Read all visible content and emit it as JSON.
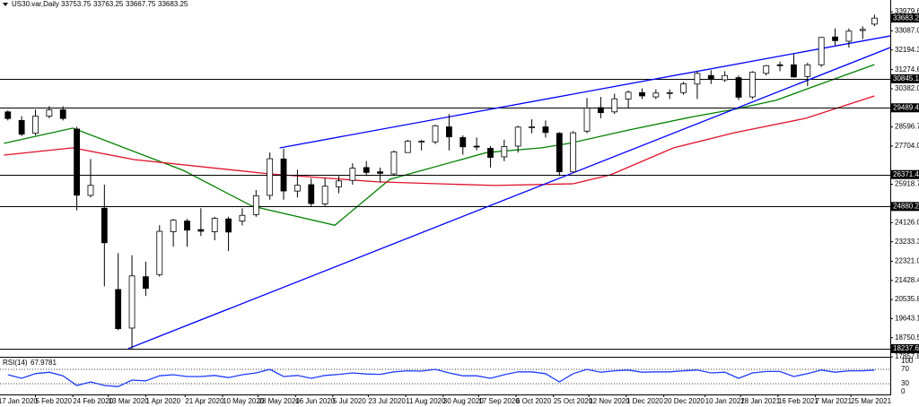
{
  "chart_data": {
    "type": "candlestick",
    "header": {
      "symbol": "US30.var,Daily",
      "ohlc": [
        33753.75,
        33763.25,
        33667.75,
        33683.25
      ]
    },
    "x": [
      "2020-01-22",
      "2020-01-29",
      "2020-02-05",
      "2020-02-12",
      "2020-02-19",
      "2020-02-26",
      "2020-03-04",
      "2020-03-11",
      "2020-03-18",
      "2020-03-25",
      "2020-04-01",
      "2020-04-08",
      "2020-04-15",
      "2020-04-22",
      "2020-04-29",
      "2020-05-06",
      "2020-05-13",
      "2020-05-20",
      "2020-05-27",
      "2020-06-03",
      "2020-06-10",
      "2020-06-17",
      "2020-06-24",
      "2020-07-01",
      "2020-07-08",
      "2020-07-15",
      "2020-07-22",
      "2020-07-29",
      "2020-08-05",
      "2020-08-12",
      "2020-08-19",
      "2020-08-26",
      "2020-09-02",
      "2020-09-09",
      "2020-09-16",
      "2020-09-23",
      "2020-09-30",
      "2020-10-07",
      "2020-10-14",
      "2020-10-21",
      "2020-10-28",
      "2020-11-04",
      "2020-11-11",
      "2020-11-18",
      "2020-11-25",
      "2020-12-02",
      "2020-12-09",
      "2020-12-16",
      "2020-12-23",
      "2020-12-30",
      "2021-01-06",
      "2021-01-13",
      "2021-01-20",
      "2021-01-27",
      "2021-02-03",
      "2021-02-10",
      "2021-02-17",
      "2021-02-24",
      "2021-03-03",
      "2021-03-10",
      "2021-03-17",
      "2021-03-24",
      "2021-03-31",
      "2021-04-06"
    ],
    "open": [
      29300,
      28900,
      28300,
      29100,
      29400,
      28500,
      25400,
      24800,
      21000,
      19200,
      21600,
      21700,
      23700,
      24200,
      23800,
      23700,
      24300,
      24200,
      24500,
      25400,
      27100,
      25600,
      25900,
      25000,
      25800,
      26100,
      26700,
      26500,
      26400,
      27400,
      27900,
      27900,
      28600,
      28100,
      27700,
      27600,
      27200,
      27700,
      28600,
      28600,
      28300,
      26500,
      28400,
      29500,
      29300,
      29900,
      30200,
      30000,
      30200,
      30200,
      30600,
      31000,
      30800,
      30900,
      30000,
      31100,
      31500,
      31500,
      30950,
      31500,
      32800,
      32600,
      33100,
      33400
    ],
    "high": [
      29370,
      29100,
      29410,
      29568,
      29560,
      28600,
      27100,
      25900,
      22700,
      22600,
      22300,
      24000,
      24300,
      24300,
      24800,
      24400,
      24400,
      24800,
      25650,
      27400,
      27580,
      26600,
      26200,
      26200,
      26300,
      26900,
      27000,
      26700,
      27500,
      28000,
      28000,
      28700,
      29200,
      28200,
      28100,
      27700,
      28000,
      28650,
      28950,
      28900,
      28350,
      28400,
      29950,
      30000,
      30150,
      30300,
      30400,
      30350,
      30350,
      30700,
      31200,
      31250,
      31200,
      31000,
      31200,
      31500,
      31650,
      32000,
      31600,
      32800,
      33200,
      33200,
      33300,
      33840
    ],
    "low": [
      28900,
      28170,
      28200,
      29000,
      28900,
      24700,
      25300,
      21150,
      19100,
      18237.62,
      20700,
      21600,
      23000,
      23000,
      23500,
      23300,
      22800,
      24000,
      24400,
      25200,
      25200,
      25300,
      24850,
      24900,
      25500,
      25900,
      26300,
      26000,
      26300,
      27400,
      27500,
      27800,
      27500,
      27300,
      27500,
      26700,
      27000,
      27400,
      28300,
      28100,
      26300,
      26500,
      28300,
      29000,
      29200,
      29500,
      29900,
      29900,
      29900,
      30100,
      29900,
      30600,
      30700,
      29850,
      29900,
      31000,
      31200,
      30900,
      30500,
      31400,
      32400,
      32300,
      32700,
      33300
    ],
    "close": [
      28990,
      28256,
      29102,
      29398,
      28992,
      25409,
      25865,
      23186,
      19174,
      21637,
      21053,
      23719,
      24242,
      23775,
      23724,
      24331,
      23685,
      24465,
      25383,
      27111,
      25605,
      25871,
      25016,
      25827,
      26075,
      26672,
      26470,
      26428,
      27433,
      27931,
      27930,
      28654,
      28133,
      27666,
      27657,
      27174,
      27683,
      28587,
      28606,
      28336,
      26502,
      28323,
      29480,
      29263,
      29910,
      30218,
      30046,
      30179,
      30200,
      30606,
      31098,
      30814,
      30997,
      29983,
      31148,
      31458,
      31494,
      30932,
      31496,
      32779,
      32628,
      33073,
      33153,
      33683.25
    ],
    "up_color": "#ffffff",
    "down_color": "#000000",
    "candle_stroke": "#000000",
    "xlim": [
      "2020-01-18",
      "2021-04-14"
    ],
    "ylim": [
      17857.84,
      34150
    ],
    "yticks": [
      33979.65,
      {
        "value": 33087,
        "label": "33087.00"
      },
      32194.35,
      31274.65,
      {
        "value": 30382,
        "label": "30382.00"
      },
      {
        "value": 28596.7,
        "label": "28596.70"
      },
      27704.05,
      25918.75,
      {
        "value": 24126,
        "label": "24126.00"
      },
      23233.35,
      {
        "value": 22321,
        "label": "22321.00"
      },
      21428.45,
      {
        "value": 20535.8,
        "label": "20535.80"
      },
      19643.15,
      {
        "value": 18750.5,
        "label": "18750.50"
      },
      17857.84
    ],
    "xticks": [
      {
        "value": "2020-01-17",
        "label": "17 Jan 2020"
      },
      {
        "value": "2020-02-05",
        "label": "5 Feb 2020"
      },
      {
        "value": "2020-02-24",
        "label": "24 Feb 2020"
      },
      {
        "value": "2020-03-13",
        "label": "13 Mar 2020"
      },
      {
        "value": "2020-04-01",
        "label": "1 Apr 2020"
      },
      {
        "value": "2020-04-21",
        "label": "21 Apr 2020"
      },
      {
        "value": "2020-05-10",
        "label": "10 May 2020"
      },
      {
        "value": "2020-05-28",
        "label": "28 May 2020"
      },
      {
        "value": "2020-06-16",
        "label": "16 Jun 2020"
      },
      {
        "value": "2020-07-05",
        "label": "5 Jul 2020"
      },
      {
        "value": "2020-07-23",
        "label": "23 Jul 2020"
      },
      {
        "value": "2020-08-11",
        "label": "11 Aug 2020"
      },
      {
        "value": "2020-08-30",
        "label": "30 Aug 2020"
      },
      {
        "value": "2020-09-17",
        "label": "17 Sep 2020"
      },
      {
        "value": "2020-10-06",
        "label": "6 Oct 2020"
      },
      {
        "value": "2020-10-25",
        "label": "25 Oct 2020"
      },
      {
        "value": "2020-11-12",
        "label": "12 Nov 2020"
      },
      {
        "value": "2020-12-01",
        "label": "1 Dec 2020"
      },
      {
        "value": "2020-12-20",
        "label": "20 Dec 2020"
      },
      {
        "value": "2021-01-10",
        "label": "10 Jan 2021"
      },
      {
        "value": "2021-01-28",
        "label": "28 Jan 2021"
      },
      {
        "value": "2021-02-16",
        "label": "16 Feb 2021"
      },
      {
        "value": "2021-03-07",
        "label": "7 Mar 2021"
      },
      {
        "value": "2021-03-25",
        "label": "25 Mar 2021"
      }
    ],
    "lines": [
      {
        "color": "#008000",
        "x": [
          "2020-01-20",
          "2020-02-24",
          "2020-04-20",
          "2020-05-25",
          "2020-07-06",
          "2020-08-03",
          "2020-09-21",
          "2020-10-19",
          "2020-11-02",
          "2020-12-02",
          "2021-01-04",
          "2021-01-25",
          "2021-02-15",
          "2021-03-08",
          "2021-04-06"
        ],
        "values": [
          27830,
          28540,
          26570,
          24900,
          24000,
          26150,
          27400,
          27620,
          27830,
          28450,
          29080,
          29420,
          29840,
          30550,
          31510
        ]
      },
      {
        "color": "#e0102a",
        "x": [
          "2020-01-20",
          "2020-02-24",
          "2020-03-26",
          "2020-06-03",
          "2020-07-28",
          "2020-09-25",
          "2020-11-04",
          "2020-11-23",
          "2020-12-25",
          "2021-01-25",
          "2021-03-02",
          "2021-04-06"
        ],
        "values": [
          27280,
          27620,
          27070,
          26400,
          26030,
          25860,
          25940,
          26360,
          27620,
          28330,
          29000,
          30046
        ]
      }
    ],
    "trendlines": [
      {
        "color": "#0000ff",
        "x": [
          "2020-03-23",
          "2021-04-14"
        ],
        "values": [
          18237.62,
          32307
        ]
      },
      {
        "color": "#0000ff",
        "x": [
          "2020-06-08",
          "2021-04-14"
        ],
        "values": [
          27617,
          32850
        ]
      }
    ],
    "levels": {
      "color": "#000000",
      "values": [
        30845.12,
        29489.47,
        26371.49,
        24880.28,
        18237.62
      ]
    },
    "last_price": 33683.25,
    "rsi": {
      "label": "RSI(14)",
      "value": 67.9781,
      "color": "#1e3cff",
      "ylim": [
        0,
        100
      ],
      "yticks": [
        0,
        30,
        70,
        100
      ],
      "values": [
        55,
        45,
        58,
        62,
        52,
        25,
        35,
        25,
        22,
        40,
        38,
        52,
        55,
        50,
        50,
        53,
        47,
        55,
        60,
        70,
        50,
        53,
        45,
        53,
        56,
        60,
        57,
        56,
        63,
        66,
        65,
        70,
        60,
        52,
        52,
        45,
        55,
        63,
        63,
        58,
        35,
        58,
        70,
        62,
        66,
        68,
        62,
        63,
        63,
        66,
        68,
        60,
        62,
        45,
        60,
        64,
        64,
        50,
        58,
        68,
        62,
        66,
        66,
        67.9781
      ]
    }
  }
}
